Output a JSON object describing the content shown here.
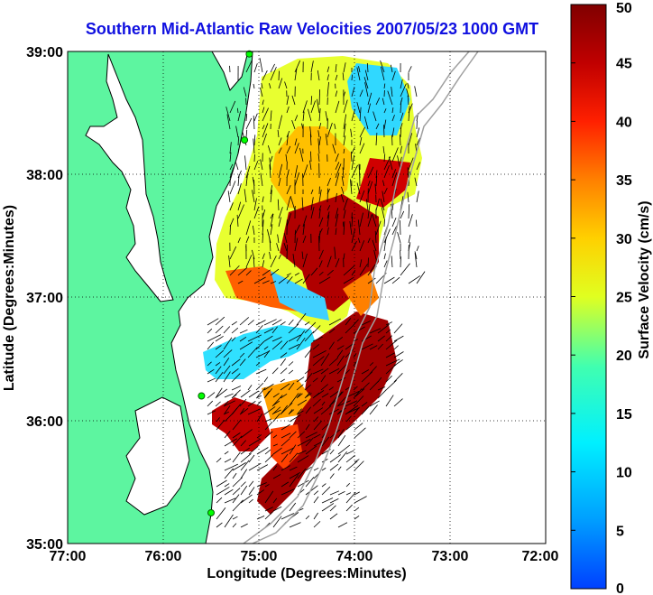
{
  "title": "Southern Mid-Atlantic Raw Velocities 2007/05/23 1000 GMT",
  "x_axis": {
    "label": "Longitude (Degrees:Minutes)",
    "ticks": [
      "77:00",
      "76:00",
      "75:00",
      "74:00",
      "73:00",
      "72:00"
    ]
  },
  "y_axis": {
    "label": "Latitude (Degrees:Minutes)",
    "ticks": [
      "39:00",
      "38:00",
      "37:00",
      "36:00",
      "35:00"
    ]
  },
  "colorbar": {
    "label": "Surface Velocity (cm/s)",
    "ticks": [
      "50",
      "45",
      "40",
      "35",
      "30",
      "25",
      "20",
      "15",
      "10",
      "5",
      "0"
    ],
    "min": 0,
    "max": 50,
    "colormap": [
      "#0040ff",
      "#00c0ff",
      "#00ffe0",
      "#a0ff40",
      "#ffff00",
      "#ffb000",
      "#ff4000",
      "#d00000",
      "#800000"
    ]
  },
  "colors": {
    "land": "#5df5a0",
    "coast": "#000000",
    "title": "#1010e0",
    "isobath": "#a0a0a0",
    "station": "#00ff00",
    "vector": "#000000"
  },
  "map": {
    "lon_range": [
      -77,
      -72
    ],
    "lat_range": [
      35,
      39
    ],
    "grid": "dotted",
    "stations": [
      {
        "lon": -75.1,
        "lat": 38.98
      },
      {
        "lon": -75.15,
        "lat": 38.28
      },
      {
        "lon": -75.6,
        "lat": 36.2
      },
      {
        "lon": -75.5,
        "lat": 35.25
      }
    ]
  }
}
